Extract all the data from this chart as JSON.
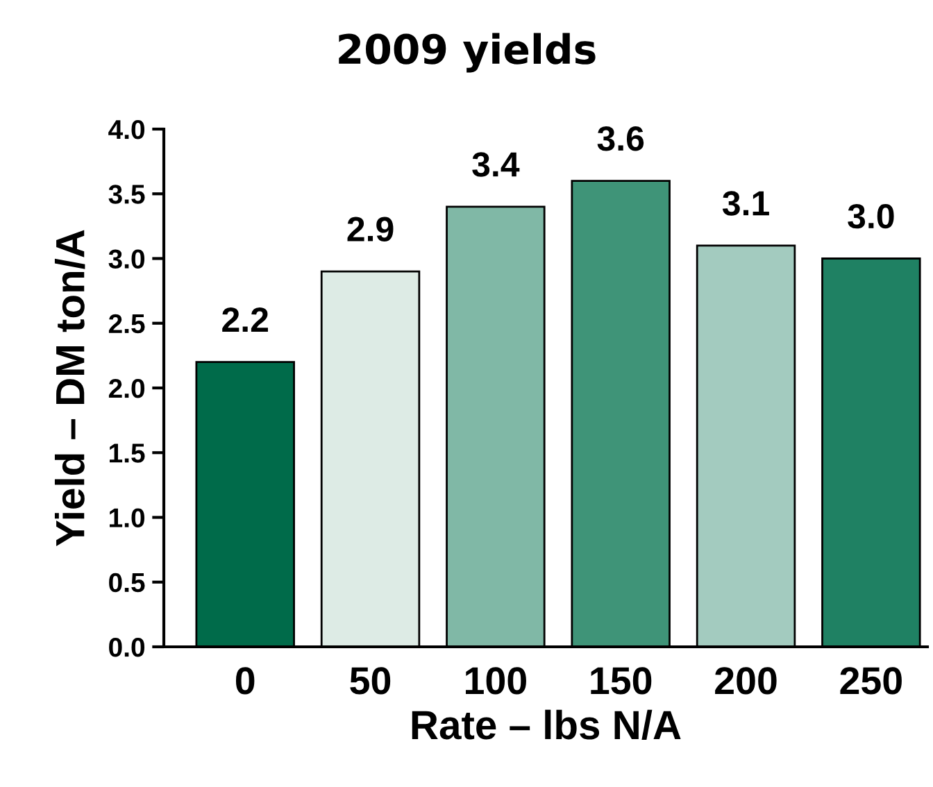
{
  "chart_data": {
    "type": "bar",
    "title": "2009 yields",
    "xlabel": "Rate – lbs N/A",
    "ylabel": "Yield – DM ton/A",
    "categories": [
      "0",
      "50",
      "100",
      "150",
      "200",
      "250"
    ],
    "values": [
      2.2,
      2.9,
      3.4,
      3.6,
      3.1,
      3.0
    ],
    "colors": [
      "#006b4a",
      "#ddebe5",
      "#80b8a6",
      "#3f9478",
      "#a3cbbf",
      "#1f8163"
    ],
    "ylim": [
      0,
      4.0
    ],
    "yticks": [
      {
        "value": 0,
        "label": "0.0"
      },
      {
        "value": 0.5,
        "label": "0.5"
      },
      {
        "value": 1.0,
        "label": "1.0"
      },
      {
        "value": 1.5,
        "label": "1.5"
      },
      {
        "value": 2.0,
        "label": "2.0"
      },
      {
        "value": 2.5,
        "label": "2.5"
      },
      {
        "value": 3.0,
        "label": "3.0"
      },
      {
        "value": 3.5,
        "label": "3.5"
      },
      {
        "value": 4.0,
        "label": "4.0"
      }
    ],
    "value_labels": [
      "2.2",
      "2.9",
      "3.4",
      "3.6",
      "3.1",
      "3.0"
    ],
    "grid": false,
    "legend": false
  }
}
